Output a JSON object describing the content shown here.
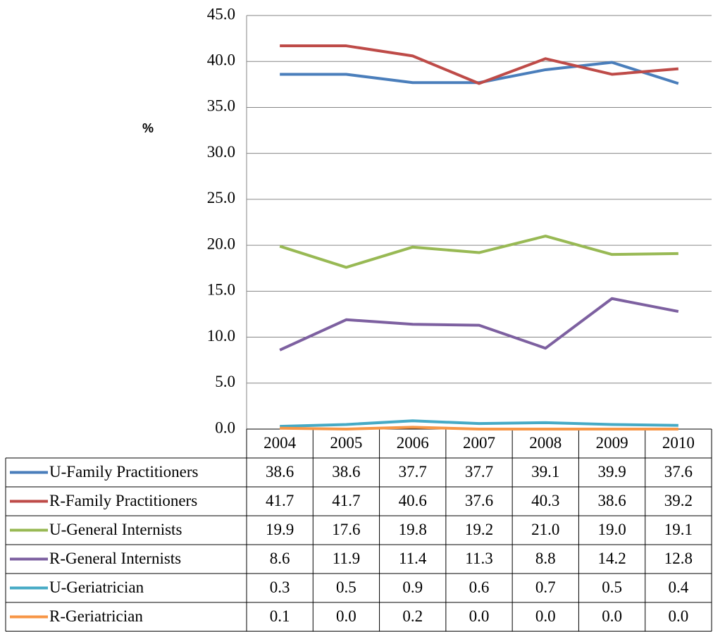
{
  "chart_data": {
    "type": "line",
    "y_label": "%",
    "categories": [
      "2004",
      "2005",
      "2006",
      "2007",
      "2008",
      "2009",
      "2010"
    ],
    "ylim": [
      0,
      45
    ],
    "yticks": [
      {
        "value": 0,
        "label": "0.0"
      },
      {
        "value": 5,
        "label": "5.0"
      },
      {
        "value": 10,
        "label": "10.0"
      },
      {
        "value": 15,
        "label": "15.0"
      },
      {
        "value": 20,
        "label": "20.0"
      },
      {
        "value": 25,
        "label": "25.0"
      },
      {
        "value": 30,
        "label": "30.0"
      },
      {
        "value": 35,
        "label": "35.0"
      },
      {
        "value": 40,
        "label": "40.0"
      },
      {
        "value": 45,
        "label": "45.0"
      }
    ],
    "grid": true,
    "series": [
      {
        "name": "U-Family Practitioners",
        "color": "#4a7ebb",
        "values": [
          38.6,
          38.6,
          37.7,
          37.7,
          39.1,
          39.9,
          37.6
        ],
        "value_labels": [
          "38.6",
          "38.6",
          "37.7",
          "37.7",
          "39.1",
          "39.9",
          "37.6"
        ]
      },
      {
        "name": "R-Family Practitioners",
        "color": "#be4b48",
        "values": [
          41.7,
          41.7,
          40.6,
          37.6,
          40.3,
          38.6,
          39.2
        ],
        "value_labels": [
          "41.7",
          "41.7",
          "40.6",
          "37.6",
          "40.3",
          "38.6",
          "39.2"
        ]
      },
      {
        "name": "U-General Internists",
        "color": "#98b954",
        "values": [
          19.9,
          17.6,
          19.8,
          19.2,
          21,
          19,
          19.1
        ],
        "value_labels": [
          "19.9",
          "17.6",
          "19.8",
          "19.2",
          "21.0",
          "19.0",
          "19.1"
        ]
      },
      {
        "name": "R-General Internists",
        "color": "#7d60a0",
        "values": [
          8.6,
          11.9,
          11.4,
          11.3,
          8.8,
          14.2,
          12.8
        ],
        "value_labels": [
          "8.6",
          "11.9",
          "11.4",
          "11.3",
          "8.8",
          "14.2",
          "12.8"
        ]
      },
      {
        "name": "U-Geriatrician",
        "color": "#46aac5",
        "values": [
          0.3,
          0.5,
          0.9,
          0.6,
          0.7,
          0.5,
          0.4
        ],
        "value_labels": [
          "0.3",
          "0.5",
          "0.9",
          "0.6",
          "0.7",
          "0.5",
          "0.4"
        ]
      },
      {
        "name": "R-Geriatrician",
        "color": "#f79646",
        "values": [
          0.1,
          0,
          0.2,
          0,
          0,
          0,
          0
        ],
        "value_labels": [
          "0.1",
          "0.0",
          "0.2",
          "0.0",
          "0.0",
          "0.0",
          "0.0"
        ]
      }
    ]
  }
}
